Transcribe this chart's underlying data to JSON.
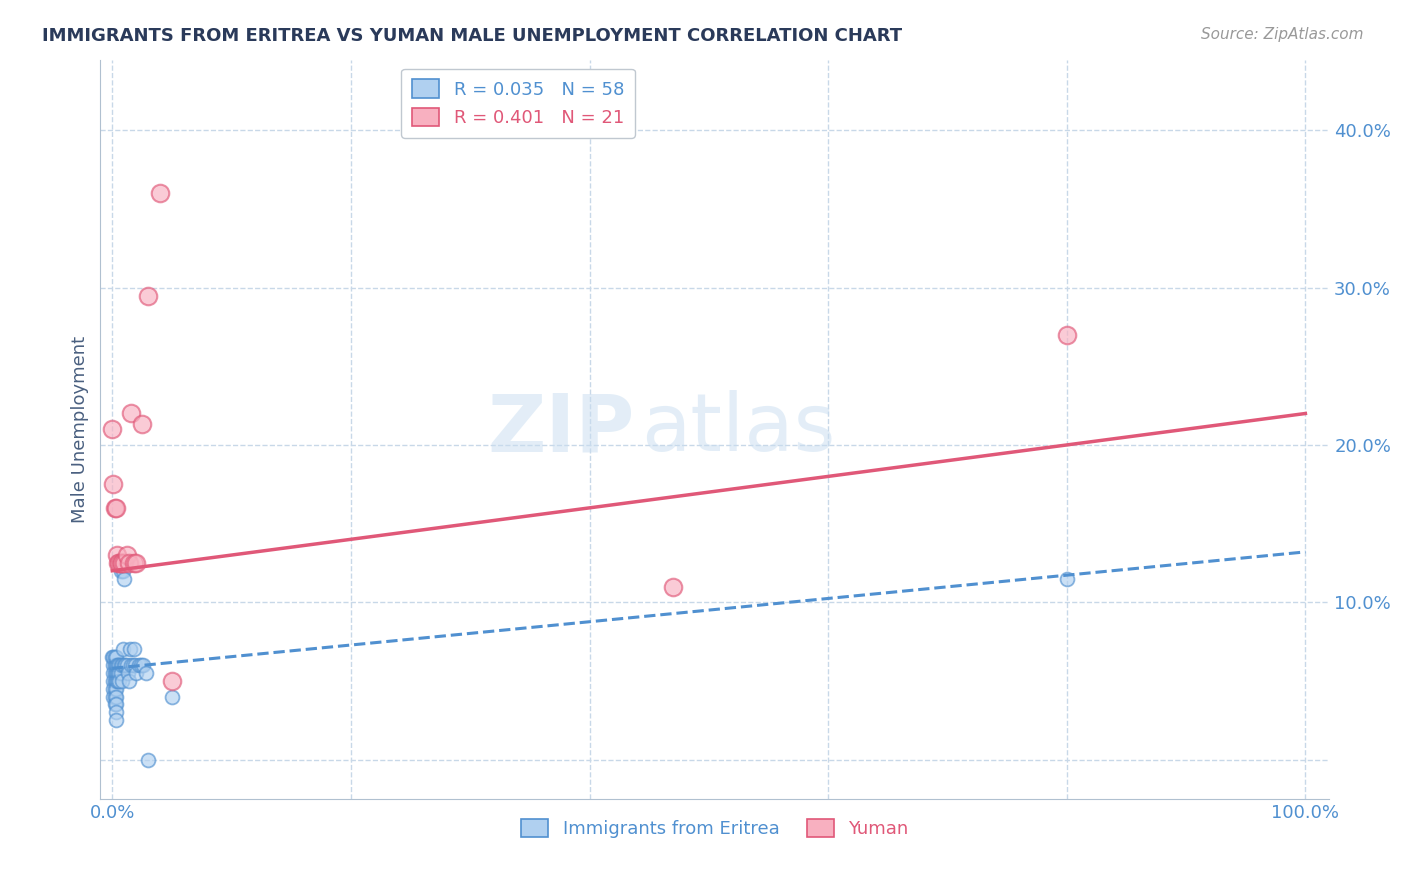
{
  "title": "IMMIGRANTS FROM ERITREA VS YUMAN MALE UNEMPLOYMENT CORRELATION CHART",
  "source": "Source: ZipAtlas.com",
  "ylabel": "Male Unemployment",
  "x_ticks": [
    0.0,
    0.2,
    0.4,
    0.6,
    0.8,
    1.0
  ],
  "y_ticks": [
    0.0,
    0.1,
    0.2,
    0.3,
    0.4
  ],
  "xlim": [
    -0.01,
    1.02
  ],
  "ylim": [
    -0.025,
    0.445
  ],
  "blue_label": "Immigrants from Eritrea",
  "pink_label": "Yuman",
  "blue_R": 0.035,
  "blue_N": 58,
  "pink_R": 0.401,
  "pink_N": 21,
  "blue_color": "#b0d0f0",
  "pink_color": "#f8b0c0",
  "blue_line_color": "#5090d0",
  "pink_line_color": "#e05878",
  "blue_x": [
    0.0,
    0.001,
    0.001,
    0.001,
    0.001,
    0.001,
    0.001,
    0.002,
    0.002,
    0.002,
    0.002,
    0.002,
    0.002,
    0.002,
    0.003,
    0.003,
    0.003,
    0.003,
    0.003,
    0.003,
    0.003,
    0.003,
    0.003,
    0.004,
    0.004,
    0.004,
    0.005,
    0.005,
    0.005,
    0.006,
    0.006,
    0.006,
    0.007,
    0.007,
    0.007,
    0.008,
    0.008,
    0.009,
    0.009,
    0.01,
    0.01,
    0.011,
    0.012,
    0.013,
    0.014,
    0.015,
    0.016,
    0.017,
    0.018,
    0.019,
    0.02,
    0.022,
    0.024,
    0.026,
    0.028,
    0.03,
    0.05,
    0.8
  ],
  "blue_y": [
    0.065,
    0.06,
    0.065,
    0.055,
    0.05,
    0.045,
    0.04,
    0.06,
    0.065,
    0.055,
    0.05,
    0.045,
    0.04,
    0.035,
    0.06,
    0.065,
    0.055,
    0.05,
    0.045,
    0.04,
    0.035,
    0.03,
    0.025,
    0.055,
    0.05,
    0.06,
    0.06,
    0.055,
    0.05,
    0.06,
    0.055,
    0.05,
    0.06,
    0.12,
    0.055,
    0.06,
    0.05,
    0.07,
    0.12,
    0.115,
    0.06,
    0.06,
    0.06,
    0.055,
    0.05,
    0.07,
    0.06,
    0.06,
    0.07,
    0.06,
    0.055,
    0.06,
    0.06,
    0.06,
    0.055,
    0.0,
    0.04,
    0.115
  ],
  "pink_x": [
    0.0,
    0.001,
    0.002,
    0.003,
    0.004,
    0.005,
    0.006,
    0.007,
    0.008,
    0.01,
    0.012,
    0.014,
    0.016,
    0.018,
    0.02,
    0.025,
    0.03,
    0.04,
    0.05,
    0.47,
    0.8
  ],
  "pink_y": [
    0.21,
    0.175,
    0.16,
    0.16,
    0.13,
    0.125,
    0.125,
    0.125,
    0.125,
    0.125,
    0.13,
    0.125,
    0.22,
    0.125,
    0.125,
    0.213,
    0.295,
    0.36,
    0.05,
    0.11,
    0.27
  ],
  "blue_trend_x": [
    0.0,
    1.0
  ],
  "blue_trend_y": [
    0.058,
    0.132
  ],
  "pink_trend_x": [
    0.0,
    1.0
  ],
  "pink_trend_y": [
    0.12,
    0.22
  ],
  "watermark_zip": "ZIP",
  "watermark_atlas": "atlas",
  "background_color": "#ffffff",
  "grid_color": "#c8d8e8",
  "title_color": "#2a3a5a",
  "axis_label_color": "#4a6080",
  "tick_color": "#5090d0"
}
